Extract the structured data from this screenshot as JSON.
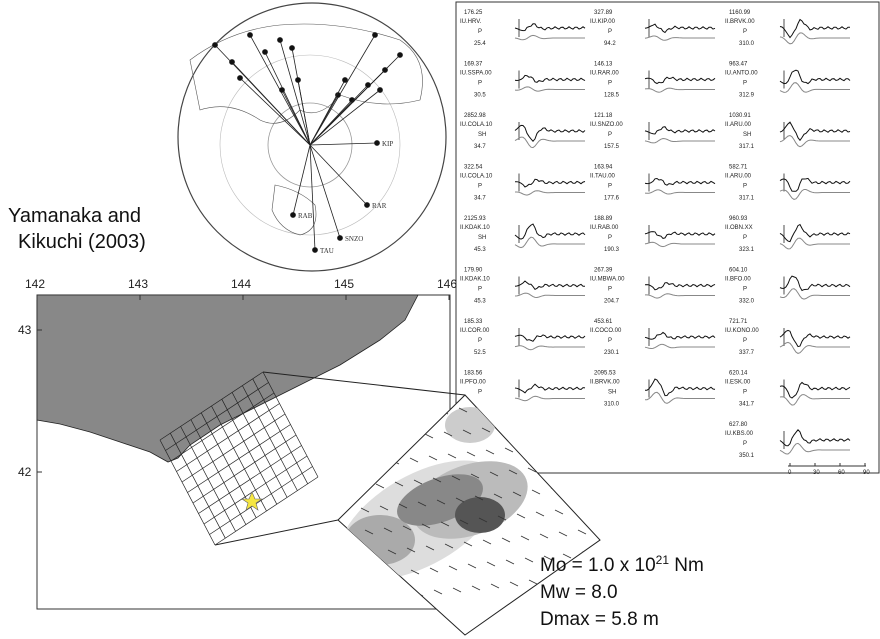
{
  "title": [
    "Yamanaka and",
    "Kikuchi (2003)"
  ],
  "map": {
    "x_labels": [
      "142",
      "143",
      "144",
      "145",
      "146"
    ],
    "y_labels": [
      "43",
      "42"
    ]
  },
  "stations": [
    "KIP",
    "RAR",
    "SNZO",
    "TAU",
    "RAB"
  ],
  "waveforms": {
    "columns": [
      [
        {
          "amp": "176.25",
          "code": "IU.HRV.",
          "phase": "P",
          "az": "25.4"
        },
        {
          "amp": "169.37",
          "code": "IU.SSPA.00",
          "phase": "P",
          "az": "30.5"
        },
        {
          "amp": "2852.98",
          "code": "IU.COLA.10",
          "phase": "SH",
          "az": "34.7"
        },
        {
          "amp": "322.54",
          "code": "IU.COLA.10",
          "phase": "P",
          "az": "34.7"
        },
        {
          "amp": "2125.93",
          "code": "II.KDAK.10",
          "phase": "SH",
          "az": "45.3"
        },
        {
          "amp": "179.90",
          "code": "II.KDAK.10",
          "phase": "P",
          "az": "45.3"
        },
        {
          "amp": "185.33",
          "code": "IU.COR.00",
          "phase": "P",
          "az": "52.5"
        },
        {
          "amp": "183.56",
          "code": "II.PFO.00",
          "phase": "P"
        }
      ],
      [
        {
          "amp": "327.89",
          "code": "IU.KIP.00",
          "phase": "P",
          "az": "94.2"
        },
        {
          "amp": "146.13",
          "code": "IU.RAR.00",
          "phase": "P",
          "az": "128.5"
        },
        {
          "amp": "121.18",
          "code": "IU.SNZO.00",
          "phase": "P",
          "az": "157.5"
        },
        {
          "amp": "163.94",
          "code": "II.TAU.00",
          "phase": "P",
          "az": "177.6"
        },
        {
          "amp": "188.89",
          "code": "IU.RAB.00",
          "phase": "P",
          "az": "190.3"
        },
        {
          "amp": "267.39",
          "code": "IU.MBWA.00",
          "phase": "P",
          "az": "204.7"
        },
        {
          "amp": "453.61",
          "code": "II.COCO.00",
          "phase": "P",
          "az": "230.1"
        },
        {
          "amp": "2095.53",
          "code": "II.BRVK.00",
          "phase": "SH",
          "az": "310.0"
        }
      ],
      [
        {
          "amp": "1160.99",
          "code": "II.BRVK.00",
          "phase": "P",
          "az": "310.0"
        },
        {
          "amp": "963.47",
          "code": "IU.ANTO.00",
          "phase": "P",
          "az": "312.9"
        },
        {
          "amp": "1030.91",
          "code": "II.ARU.00",
          "phase": "SH",
          "az": "317.1"
        },
        {
          "amp": "582.71",
          "code": "II.ARU.00",
          "phase": "P",
          "az": "317.1"
        },
        {
          "amp": "960.93",
          "code": "II.OBN.XX",
          "phase": "P",
          "az": "323.1"
        },
        {
          "amp": "604.10",
          "code": "II.BFO.00",
          "phase": "P",
          "az": "332.0"
        },
        {
          "amp": "721.71",
          "code": "IU.KONO.00",
          "phase": "P",
          "az": "337.7"
        },
        {
          "amp": "620.14",
          "code": "II.ESK.00",
          "phase": "P",
          "az": "341.7"
        },
        {
          "amp": "627.80",
          "code": "IU.KBS.00",
          "phase": "P",
          "az": "350.1"
        }
      ]
    ],
    "time_labels": [
      "0",
      "30",
      "60",
      "90"
    ]
  },
  "results": {
    "mo": [
      "Mo = 1.0 x 10",
      "21",
      " Nm"
    ],
    "mw": "Mw = 8.0",
    "dmax": "Dmax = 5.8 m"
  }
}
